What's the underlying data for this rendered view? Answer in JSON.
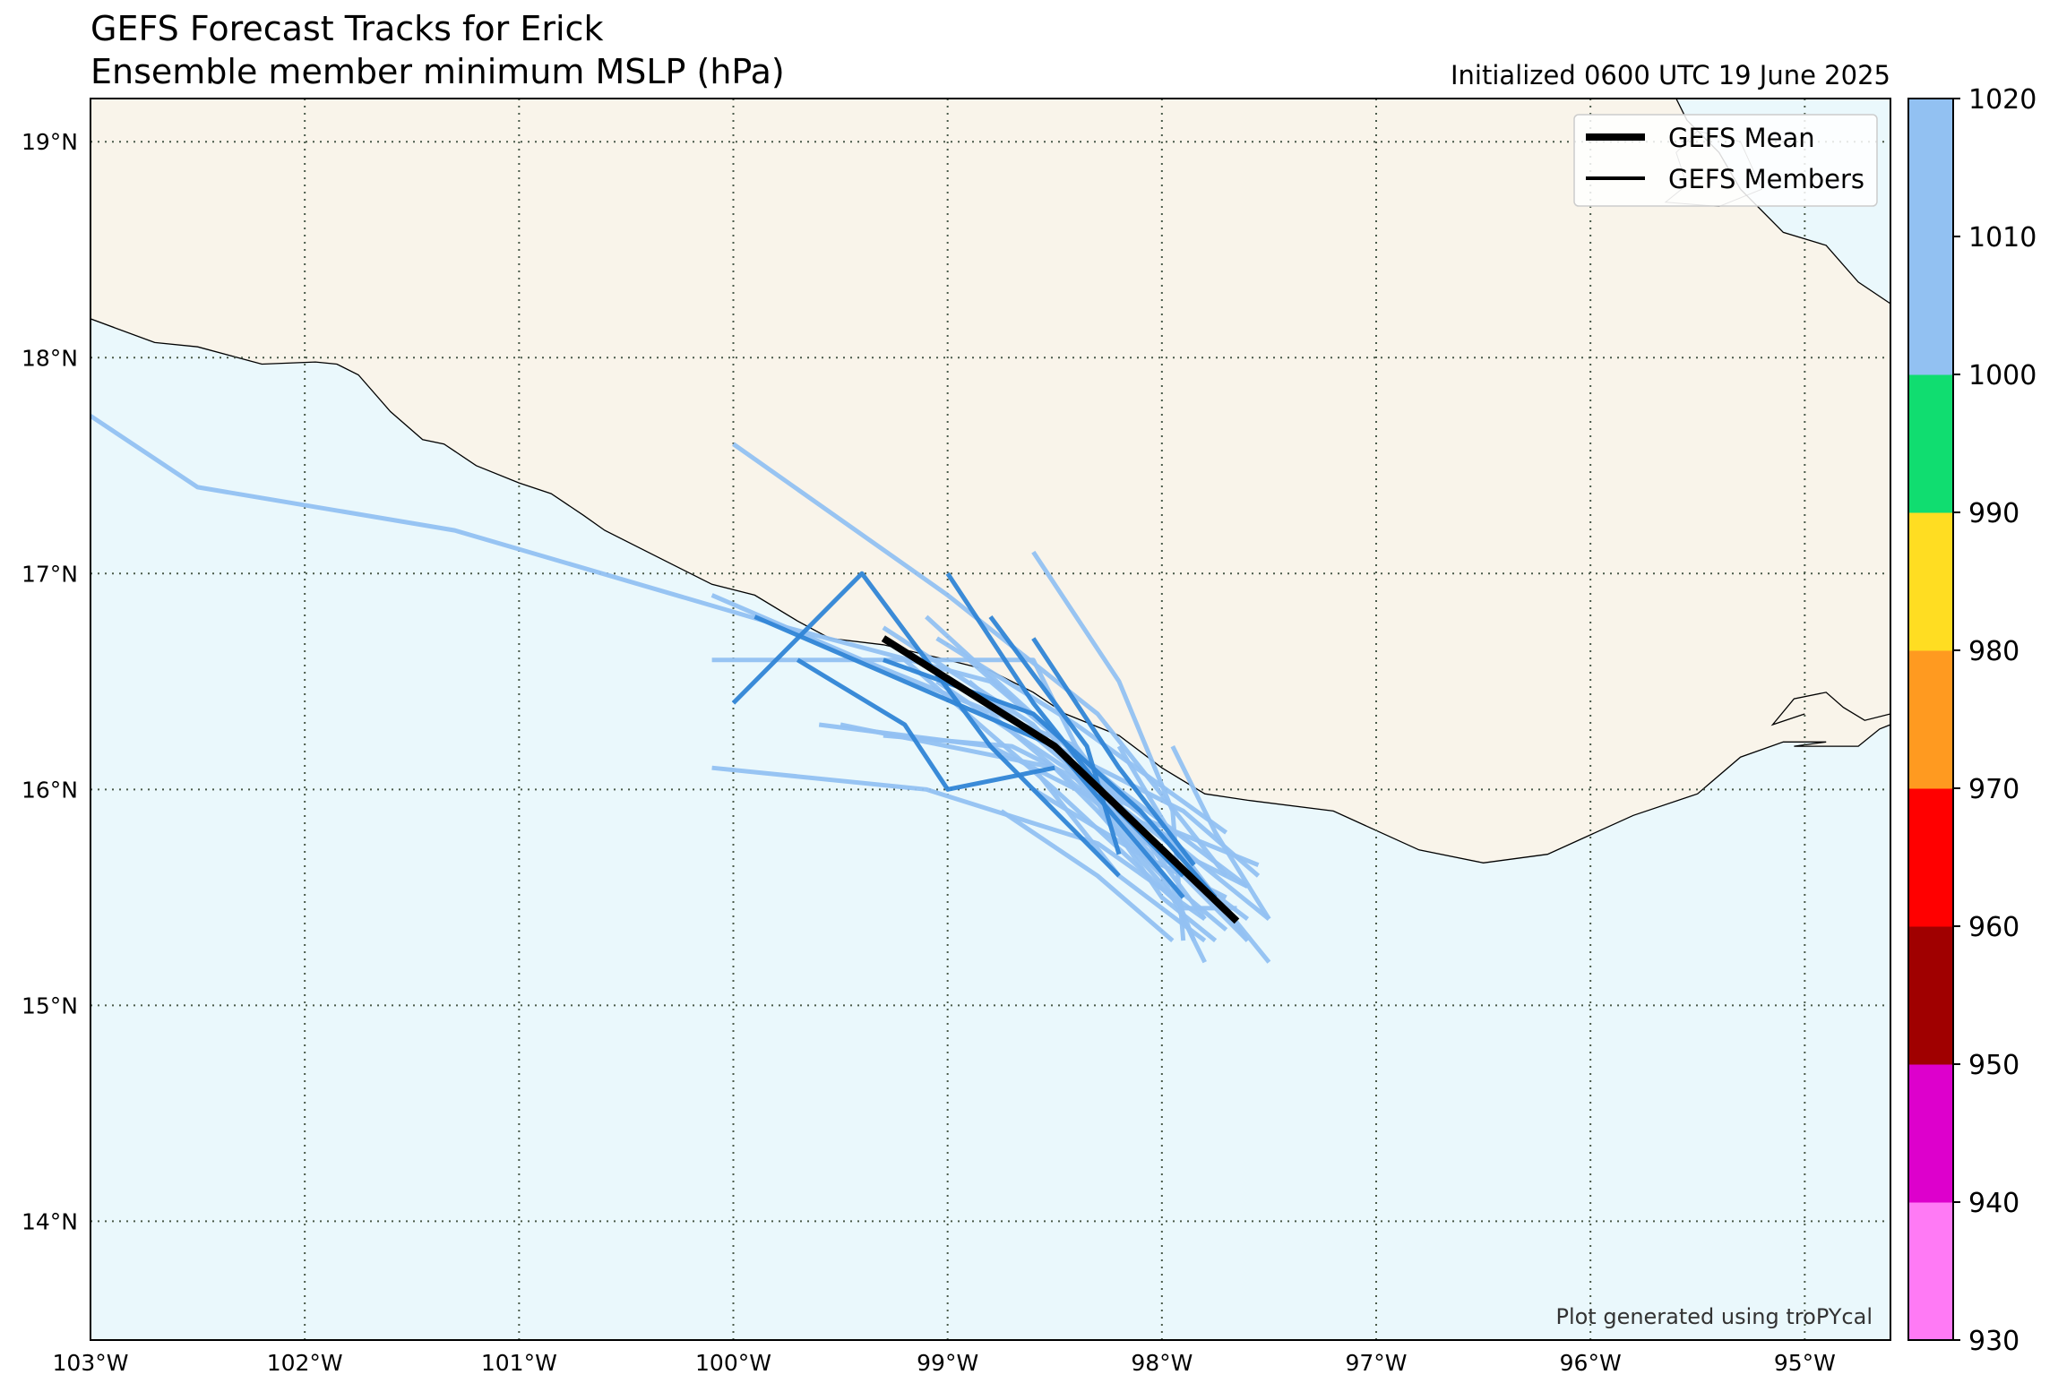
{
  "title": "GEFS Forecast Tracks for Erick",
  "subtitle": "Ensemble member minimum MSLP (hPa)",
  "init_text": "Initialized 0600 UTC 19 June 2025",
  "credit": "Plot generated using troPYcal",
  "legend": {
    "mean_label": "GEFS Mean",
    "members_label": "GEFS Members"
  },
  "colors": {
    "land": "#f9f4ea",
    "ocean": "#eaf8fc",
    "mean": "#000000",
    "grid": "#4a5a4a"
  },
  "chart_data": {
    "type": "map",
    "lon_range": [
      -103,
      -94.6
    ],
    "lat_range": [
      13.45,
      19.2
    ],
    "x_ticks": [
      {
        "v": -103,
        "label": "103°W"
      },
      {
        "v": -102,
        "label": "102°W"
      },
      {
        "v": -101,
        "label": "101°W"
      },
      {
        "v": -100,
        "label": "100°W"
      },
      {
        "v": -99,
        "label": "99°W"
      },
      {
        "v": -98,
        "label": "98°W"
      },
      {
        "v": -97,
        "label": "97°W"
      },
      {
        "v": -96,
        "label": "96°W"
      },
      {
        "v": -95,
        "label": "95°W"
      }
    ],
    "y_ticks": [
      {
        "v": 19,
        "label": "19°N"
      },
      {
        "v": 18,
        "label": "18°N"
      },
      {
        "v": 17,
        "label": "17°N"
      },
      {
        "v": 16,
        "label": "16°N"
      },
      {
        "v": 15,
        "label": "15°N"
      },
      {
        "v": 14,
        "label": "14°N"
      }
    ],
    "grid": true,
    "legend_position": "top-right",
    "colorbar": {
      "levels": [
        "930",
        "940",
        "950",
        "960",
        "970",
        "980",
        "990",
        "1000",
        "1010",
        "1020"
      ],
      "colors": [
        "#ff7af5",
        "#dd00cc",
        "#a00000",
        "#ff0000",
        "#ff9a20",
        "#ffdd22",
        "#10dd70",
        "#92c1f2",
        "#92c1f2",
        "#3085d6"
      ]
    },
    "coastline": [
      [
        -103.0,
        18.18
      ],
      [
        -102.7,
        18.07
      ],
      [
        -102.5,
        18.05
      ],
      [
        -102.2,
        17.97
      ],
      [
        -101.95,
        17.98
      ],
      [
        -101.85,
        17.97
      ],
      [
        -101.75,
        17.92
      ],
      [
        -101.6,
        17.75
      ],
      [
        -101.45,
        17.62
      ],
      [
        -101.35,
        17.6
      ],
      [
        -101.2,
        17.5
      ],
      [
        -101.0,
        17.42
      ],
      [
        -100.85,
        17.37
      ],
      [
        -100.7,
        17.27
      ],
      [
        -100.6,
        17.2
      ],
      [
        -100.4,
        17.1
      ],
      [
        -100.2,
        17.0
      ],
      [
        -100.1,
        16.95
      ],
      [
        -99.9,
        16.9
      ],
      [
        -99.7,
        16.78
      ],
      [
        -99.55,
        16.7
      ],
      [
        -99.3,
        16.67
      ],
      [
        -99.0,
        16.6
      ],
      [
        -98.8,
        16.55
      ],
      [
        -98.6,
        16.45
      ],
      [
        -98.45,
        16.35
      ],
      [
        -98.2,
        16.25
      ],
      [
        -98.0,
        16.1
      ],
      [
        -97.8,
        15.98
      ],
      [
        -97.6,
        15.95
      ],
      [
        -97.2,
        15.9
      ],
      [
        -96.8,
        15.72
      ],
      [
        -96.5,
        15.66
      ],
      [
        -96.2,
        15.7
      ],
      [
        -95.8,
        15.88
      ],
      [
        -95.5,
        15.98
      ],
      [
        -95.3,
        16.15
      ],
      [
        -95.1,
        16.22
      ],
      [
        -94.9,
        16.22
      ],
      [
        -95.05,
        16.2
      ],
      [
        -94.75,
        16.2
      ],
      [
        -94.65,
        16.28
      ],
      [
        -94.6,
        16.3
      ]
    ],
    "inlet": [
      [
        -95.0,
        16.35
      ],
      [
        -95.15,
        16.3
      ],
      [
        -95.05,
        16.42
      ],
      [
        -94.9,
        16.45
      ],
      [
        -94.82,
        16.38
      ],
      [
        -94.72,
        16.32
      ],
      [
        -94.6,
        16.35
      ]
    ],
    "coast_north": [
      [
        -95.6,
        19.2
      ],
      [
        -95.55,
        19.1
      ],
      [
        -95.4,
        18.95
      ],
      [
        -95.3,
        18.78
      ],
      [
        -95.1,
        18.58
      ],
      [
        -94.9,
        18.52
      ],
      [
        -94.75,
        18.35
      ],
      [
        -94.6,
        18.25
      ]
    ],
    "lagoon": [
      [
        -95.3,
        19.0
      ],
      [
        -95.5,
        19.05
      ],
      [
        -95.6,
        18.95
      ],
      [
        -95.55,
        18.8
      ],
      [
        -95.65,
        18.72
      ],
      [
        -95.4,
        18.7
      ],
      [
        -95.2,
        18.78
      ],
      [
        -95.3,
        19.0
      ]
    ],
    "mean_track": [
      [
        -99.3,
        16.7
      ],
      [
        -98.5,
        16.2
      ],
      [
        -97.65,
        15.39
      ]
    ],
    "members": [
      {
        "c": 1,
        "pts": [
          [
            -103.0,
            17.73
          ],
          [
            -102.5,
            17.4
          ],
          [
            -101.3,
            17.2
          ],
          [
            -99.75,
            16.75
          ],
          [
            -98.8,
            16.5
          ],
          [
            -98.2,
            16.0
          ],
          [
            -97.6,
            15.55
          ]
        ]
      },
      {
        "c": 1,
        "pts": [
          [
            -100.0,
            17.6
          ],
          [
            -99.0,
            16.9
          ],
          [
            -98.3,
            16.35
          ],
          [
            -97.7,
            15.6
          ]
        ]
      },
      {
        "c": 1,
        "pts": [
          [
            -100.1,
            16.9
          ],
          [
            -99.4,
            16.6
          ],
          [
            -98.4,
            16.2
          ],
          [
            -97.8,
            15.4
          ]
        ]
      },
      {
        "c": 1,
        "pts": [
          [
            -100.1,
            16.6
          ],
          [
            -98.6,
            16.6
          ],
          [
            -98.3,
            16.0
          ],
          [
            -97.6,
            15.3
          ]
        ]
      },
      {
        "c": 1,
        "pts": [
          [
            -99.6,
            16.3
          ],
          [
            -98.8,
            16.2
          ],
          [
            -98.0,
            15.8
          ],
          [
            -97.5,
            15.4
          ]
        ]
      },
      {
        "c": 1,
        "pts": [
          [
            -99.5,
            16.3
          ],
          [
            -98.5,
            16.1
          ],
          [
            -98.0,
            15.6
          ],
          [
            -97.7,
            15.35
          ]
        ]
      },
      {
        "c": 1,
        "pts": [
          [
            -100.1,
            16.1
          ],
          [
            -99.1,
            16.0
          ],
          [
            -98.3,
            15.75
          ],
          [
            -97.8,
            15.4
          ]
        ]
      },
      {
        "c": 1,
        "pts": [
          [
            -99.3,
            16.75
          ],
          [
            -98.6,
            16.3
          ],
          [
            -98.05,
            15.7
          ],
          [
            -97.8,
            15.2
          ]
        ]
      },
      {
        "c": 1,
        "pts": [
          [
            -99.05,
            16.5
          ],
          [
            -98.45,
            16.1
          ],
          [
            -97.9,
            15.6
          ],
          [
            -97.65,
            15.4
          ]
        ]
      },
      {
        "c": 1,
        "pts": [
          [
            -98.6,
            17.1
          ],
          [
            -98.2,
            16.5
          ],
          [
            -97.95,
            15.9
          ],
          [
            -97.9,
            15.3
          ]
        ]
      },
      {
        "c": 1,
        "pts": [
          [
            -98.9,
            16.6
          ],
          [
            -98.5,
            16.25
          ],
          [
            -97.95,
            15.75
          ],
          [
            -97.5,
            15.2
          ]
        ]
      },
      {
        "c": 1,
        "pts": [
          [
            -98.9,
            16.5
          ],
          [
            -98.3,
            16.0
          ],
          [
            -97.9,
            15.7
          ],
          [
            -97.6,
            15.55
          ]
        ]
      },
      {
        "c": 1,
        "pts": [
          [
            -98.75,
            15.9
          ],
          [
            -98.3,
            15.6
          ],
          [
            -97.95,
            15.3
          ]
        ]
      },
      {
        "c": 1,
        "pts": [
          [
            -98.6,
            16.0
          ],
          [
            -98.1,
            15.7
          ],
          [
            -97.7,
            15.5
          ]
        ]
      },
      {
        "c": 1,
        "pts": [
          [
            -99.1,
            16.8
          ],
          [
            -98.55,
            16.3
          ],
          [
            -98.0,
            15.5
          ],
          [
            -97.75,
            15.3
          ]
        ]
      },
      {
        "c": 1,
        "pts": [
          [
            -98.5,
            16.2
          ],
          [
            -97.9,
            15.9
          ],
          [
            -97.55,
            15.6
          ]
        ]
      },
      {
        "c": 1,
        "pts": [
          [
            -98.2,
            16.2
          ],
          [
            -97.9,
            15.7
          ],
          [
            -97.6,
            15.3
          ]
        ]
      },
      {
        "c": 1,
        "pts": [
          [
            -97.95,
            16.2
          ],
          [
            -97.75,
            15.8
          ],
          [
            -97.5,
            15.4
          ]
        ]
      },
      {
        "c": 1,
        "pts": [
          [
            -98.8,
            16.35
          ],
          [
            -98.2,
            15.85
          ],
          [
            -97.6,
            15.4
          ]
        ]
      },
      {
        "c": 1,
        "pts": [
          [
            -98.6,
            16.1
          ],
          [
            -98.2,
            15.6
          ],
          [
            -97.8,
            15.3
          ]
        ]
      },
      {
        "c": 1,
        "pts": [
          [
            -99.2,
            16.6
          ],
          [
            -98.5,
            16.0
          ],
          [
            -97.9,
            15.45
          ]
        ]
      },
      {
        "c": 1,
        "pts": [
          [
            -99.05,
            16.7
          ],
          [
            -98.4,
            16.3
          ],
          [
            -97.7,
            15.8
          ]
        ]
      },
      {
        "c": 1,
        "pts": [
          [
            -98.85,
            16.45
          ],
          [
            -98.05,
            15.85
          ],
          [
            -97.55,
            15.65
          ]
        ]
      },
      {
        "c": 1,
        "pts": [
          [
            -98.4,
            16.05
          ],
          [
            -97.95,
            15.55
          ],
          [
            -97.85,
            15.3
          ]
        ]
      },
      {
        "c": 1,
        "pts": [
          [
            -98.3,
            15.9
          ],
          [
            -97.9,
            15.45
          ],
          [
            -97.65,
            15.45
          ]
        ]
      },
      {
        "c": 1,
        "pts": [
          [
            -99.3,
            16.25
          ],
          [
            -98.7,
            16.2
          ],
          [
            -98.1,
            15.9
          ]
        ]
      },
      {
        "c": 2,
        "pts": [
          [
            -100.0,
            16.4
          ],
          [
            -99.4,
            17.0
          ],
          [
            -98.8,
            16.2
          ],
          [
            -98.2,
            15.6
          ]
        ]
      },
      {
        "c": 2,
        "pts": [
          [
            -99.9,
            16.8
          ],
          [
            -99.2,
            16.5
          ],
          [
            -98.5,
            16.2
          ],
          [
            -97.9,
            15.5
          ]
        ]
      },
      {
        "c": 2,
        "pts": [
          [
            -99.0,
            17.0
          ],
          [
            -98.6,
            16.4
          ],
          [
            -98.2,
            15.9
          ],
          [
            -97.9,
            15.6
          ]
        ]
      },
      {
        "c": 2,
        "pts": [
          [
            -99.7,
            16.6
          ],
          [
            -99.2,
            16.3
          ],
          [
            -99.0,
            16.0
          ],
          [
            -98.5,
            16.1
          ]
        ]
      },
      {
        "c": 2,
        "pts": [
          [
            -98.8,
            16.8
          ],
          [
            -98.35,
            16.2
          ],
          [
            -98.2,
            15.7
          ]
        ]
      },
      {
        "c": 2,
        "pts": [
          [
            -98.6,
            16.7
          ],
          [
            -98.2,
            16.1
          ],
          [
            -97.85,
            15.65
          ]
        ]
      },
      {
        "c": 2,
        "pts": [
          [
            -99.3,
            16.6
          ],
          [
            -98.6,
            16.35
          ],
          [
            -98.1,
            15.9
          ],
          [
            -97.75,
            15.5
          ]
        ]
      }
    ]
  }
}
